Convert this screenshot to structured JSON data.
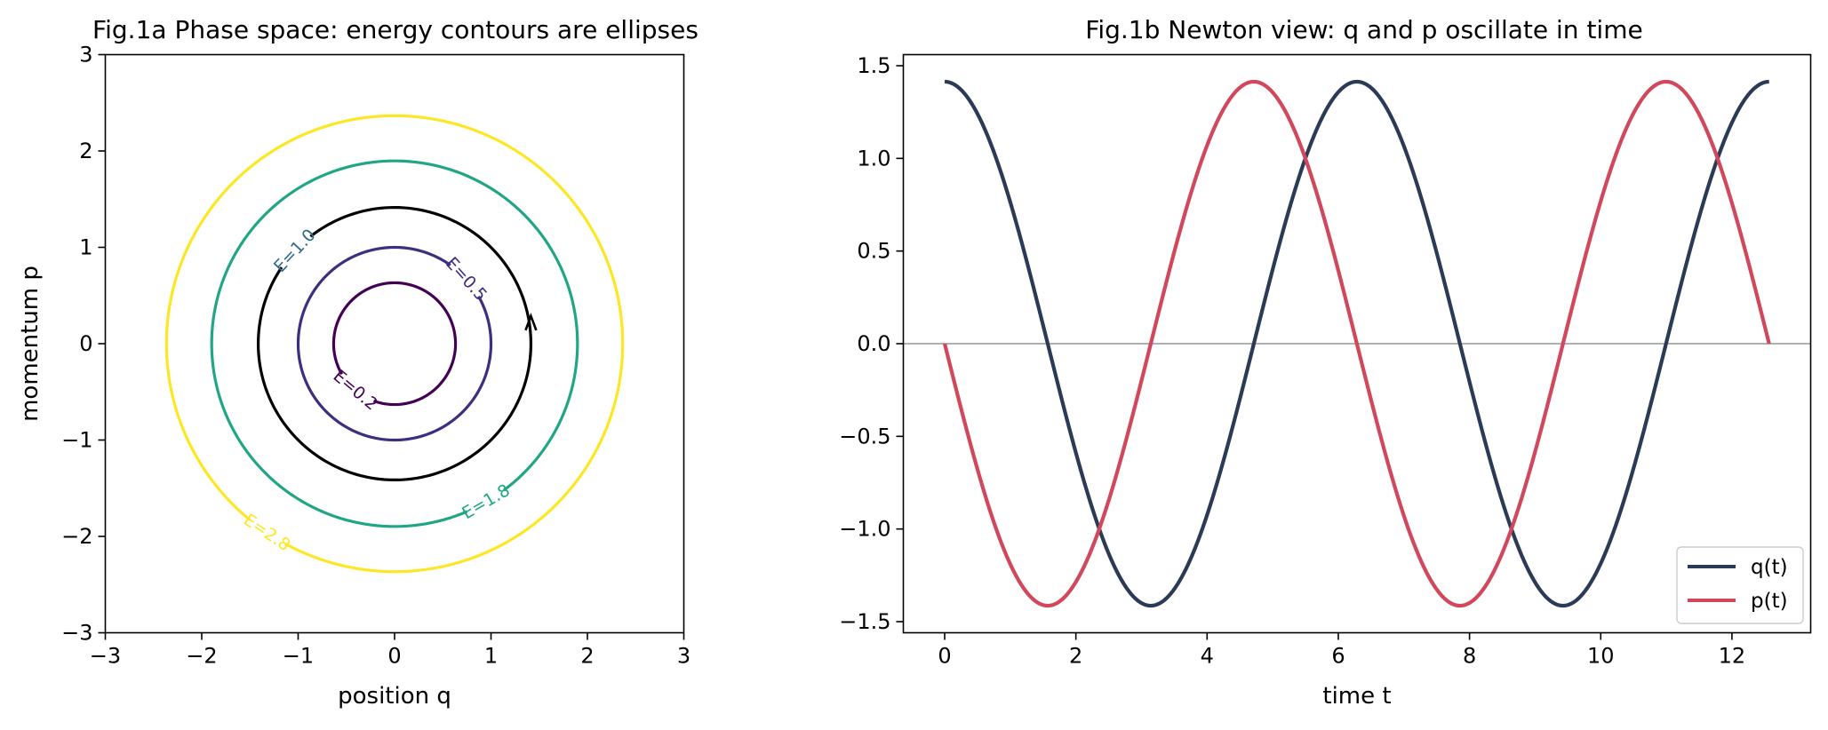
{
  "chart_data": [
    {
      "type": "contour",
      "title": "Fig.1a Phase space: energy contours are ellipses",
      "xlabel": "position q",
      "ylabel": "momentum p",
      "xlim": [
        -3,
        3
      ],
      "ylim": [
        -3,
        3
      ],
      "xticks": [
        -3,
        -2,
        -1,
        0,
        1,
        2,
        3
      ],
      "yticks": [
        -3,
        -2,
        -1,
        0,
        1,
        2,
        3
      ],
      "tick_labels": [
        "−3",
        "−2",
        "−1",
        "0",
        "1",
        "2",
        "3"
      ],
      "grid": false,
      "levels": [
        {
          "label": "E=0.2",
          "energy": 0.2,
          "radius": 0.632,
          "color": "#440154",
          "label_angle_deg": 230
        },
        {
          "label": "E=0.5",
          "energy": 0.5,
          "radius": 1.0,
          "color": "#3b2f80",
          "label_angle_deg": 42
        },
        {
          "label": "E=1.0",
          "energy": 1.0,
          "radius": 1.414,
          "color": "#000000",
          "label_color": "#31688e",
          "label_angle_deg": 137
        },
        {
          "label": "E=1.8",
          "energy": 1.8,
          "radius": 1.897,
          "color": "#21a685",
          "label_angle_deg": -60
        },
        {
          "label": "E=2.8",
          "energy": 2.8,
          "radius": 2.366,
          "color": "#fde725",
          "label_angle_deg": -124
        }
      ],
      "trajectory": {
        "energy": 1.0,
        "color": "#000000",
        "arrow_at": [
          1.414,
          0.25
        ],
        "direction": "counterclockwise"
      }
    },
    {
      "type": "line",
      "title": "Fig.1b Newton view: q and p oscillate in time",
      "xlabel": "time t",
      "ylabel": "",
      "xlim": [
        -0.63,
        13.2
      ],
      "ylim": [
        -1.56,
        1.56
      ],
      "xticks": [
        0,
        2,
        4,
        6,
        8,
        10,
        12
      ],
      "xtick_labels": [
        "0",
        "2",
        "4",
        "6",
        "8",
        "10",
        "12"
      ],
      "yticks": [
        -1.5,
        -1.0,
        -0.5,
        0.0,
        0.5,
        1.0,
        1.5
      ],
      "ytick_labels": [
        "−1.5",
        "−1.0",
        "−0.5",
        "0.0",
        "0.5",
        "1.0",
        "1.5"
      ],
      "t_range": [
        0,
        12.566
      ],
      "reference_line_y": 0.0,
      "grid": false,
      "legend": "lower-right",
      "series": [
        {
          "name": "q(t)",
          "formula": "1.414*cos(t)",
          "amplitude": 1.414,
          "phase": "cos",
          "color": "#2b3b55"
        },
        {
          "name": "p(t)",
          "formula": "-1.414*sin(t)",
          "amplitude": 1.414,
          "phase": "-sin",
          "color": "#d1475c"
        }
      ]
    }
  ]
}
